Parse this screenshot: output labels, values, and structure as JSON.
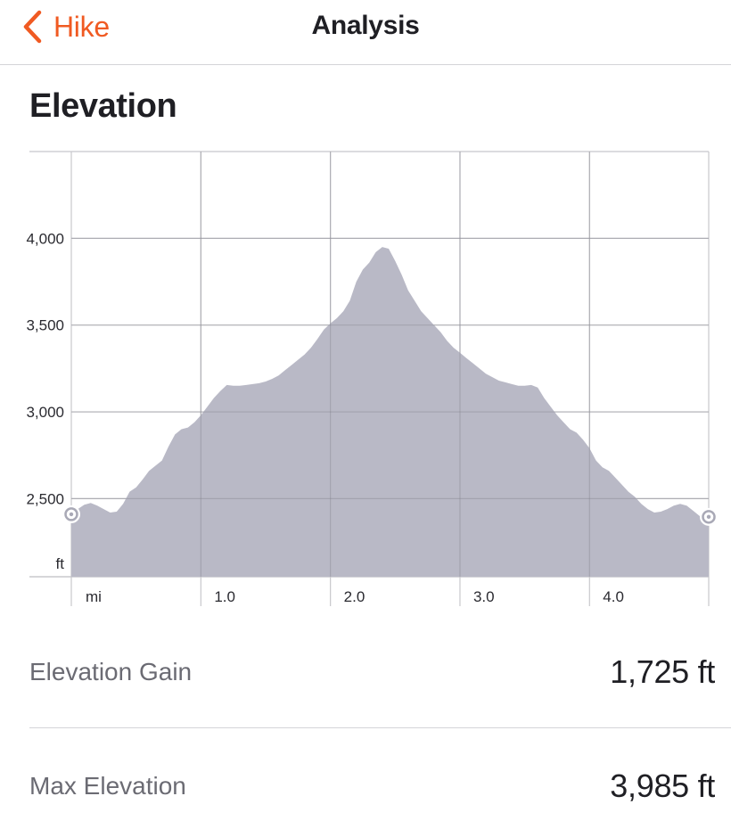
{
  "nav": {
    "back_label": "Hike",
    "title": "Analysis"
  },
  "section": {
    "title": "Elevation"
  },
  "colors": {
    "accent": "#f05a22",
    "area_fill": "#b9b9c6",
    "grid": "#c8c8cc"
  },
  "chart_data": {
    "type": "area",
    "title": "",
    "xlabel": "mi",
    "ylabel": "ft",
    "xlim": [
      0,
      4.92
    ],
    "ylim": [
      2050,
      4500
    ],
    "x_ticks": [
      1.0,
      2.0,
      3.0,
      4.0
    ],
    "x_tick_labels": [
      "1.0",
      "2.0",
      "3.0",
      "4.0"
    ],
    "y_ticks": [
      2500,
      3000,
      3500,
      4000
    ],
    "y_tick_labels": [
      "2,500",
      "3,000",
      "3,500",
      "4,000"
    ],
    "grid": true,
    "endpoint_markers": true,
    "x": [
      0.0,
      0.05,
      0.1,
      0.15,
      0.2,
      0.25,
      0.3,
      0.35,
      0.4,
      0.45,
      0.5,
      0.55,
      0.6,
      0.65,
      0.7,
      0.75,
      0.8,
      0.85,
      0.9,
      0.95,
      1.0,
      1.05,
      1.1,
      1.15,
      1.2,
      1.25,
      1.3,
      1.35,
      1.4,
      1.45,
      1.5,
      1.55,
      1.6,
      1.65,
      1.7,
      1.75,
      1.8,
      1.85,
      1.9,
      1.95,
      2.0,
      2.05,
      2.1,
      2.15,
      2.2,
      2.25,
      2.3,
      2.35,
      2.4,
      2.45,
      2.5,
      2.55,
      2.6,
      2.65,
      2.7,
      2.75,
      2.8,
      2.85,
      2.9,
      2.95,
      3.0,
      3.05,
      3.1,
      3.15,
      3.2,
      3.25,
      3.3,
      3.35,
      3.4,
      3.45,
      3.5,
      3.55,
      3.6,
      3.65,
      3.7,
      3.75,
      3.8,
      3.85,
      3.9,
      3.95,
      4.0,
      4.05,
      4.1,
      4.15,
      4.2,
      4.25,
      4.3,
      4.35,
      4.4,
      4.45,
      4.5,
      4.55,
      4.6,
      4.65,
      4.7,
      4.75,
      4.8,
      4.85,
      4.92
    ],
    "y": [
      2410,
      2440,
      2465,
      2475,
      2460,
      2440,
      2420,
      2425,
      2470,
      2540,
      2565,
      2610,
      2660,
      2690,
      2720,
      2800,
      2870,
      2900,
      2910,
      2940,
      2980,
      3030,
      3080,
      3120,
      3155,
      3150,
      3150,
      3155,
      3160,
      3165,
      3175,
      3190,
      3210,
      3240,
      3270,
      3300,
      3330,
      3370,
      3420,
      3475,
      3510,
      3540,
      3580,
      3640,
      3750,
      3820,
      3860,
      3920,
      3950,
      3940,
      3870,
      3790,
      3700,
      3640,
      3580,
      3540,
      3500,
      3460,
      3410,
      3370,
      3340,
      3310,
      3280,
      3250,
      3220,
      3200,
      3180,
      3170,
      3160,
      3150,
      3150,
      3155,
      3140,
      3080,
      3030,
      2980,
      2940,
      2900,
      2880,
      2840,
      2790,
      2720,
      2680,
      2660,
      2620,
      2580,
      2540,
      2510,
      2470,
      2440,
      2420,
      2425,
      2440,
      2460,
      2470,
      2460,
      2430,
      2400,
      2395
    ]
  },
  "stats": {
    "gain_label": "Elevation Gain",
    "gain_value": "1,725 ft",
    "max_label": "Max Elevation",
    "max_value": "3,985 ft"
  }
}
